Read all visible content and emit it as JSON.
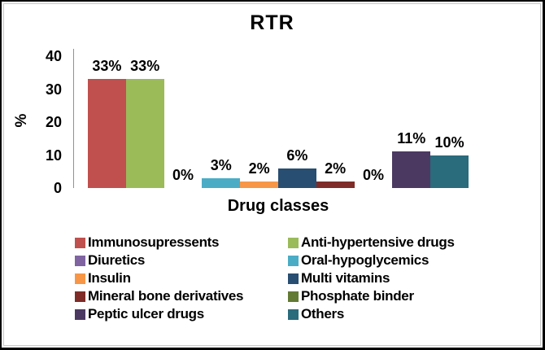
{
  "chart_data": {
    "type": "bar",
    "title": "RTR",
    "xlabel": "Drug classes",
    "ylabel": "%",
    "ylim": [
      0,
      40
    ],
    "yticks": [
      0,
      10,
      20,
      30,
      40
    ],
    "grid": false,
    "legend_position": "bottom",
    "categories": [
      "Drug classes"
    ],
    "series": [
      {
        "name": "Immunosupressents",
        "value": 33,
        "label": "33%",
        "color": "#C0504D"
      },
      {
        "name": "Anti-hypertensive drugs",
        "value": 33,
        "label": "33%",
        "color": "#9BBB59"
      },
      {
        "name": "Diuretics",
        "value": 0,
        "label": "0%",
        "color": "#8064A2"
      },
      {
        "name": "Oral-hypoglycemics",
        "value": 3,
        "label": "3%",
        "color": "#4BACC6"
      },
      {
        "name": "Insulin",
        "value": 2,
        "label": "2%",
        "color": "#F79646"
      },
      {
        "name": "Multi vitamins",
        "value": 6,
        "label": "6%",
        "color": "#284E71"
      },
      {
        "name": "Mineral bone derivatives",
        "value": 2,
        "label": "2%",
        "color": "#7F2C28"
      },
      {
        "name": "Phosphate binder",
        "value": 0,
        "label": "0%",
        "color": "#637A35"
      },
      {
        "name": "Peptic ulcer drugs",
        "value": 11,
        "label": "11%",
        "color": "#4B3961"
      },
      {
        "name": "Others",
        "value": 10,
        "label": "10%",
        "color": "#2A6B7C"
      }
    ]
  },
  "layout_colors": {
    "axis_line": "#919191",
    "frame_border": "#000000",
    "inner_border": "#c9c9c9"
  }
}
